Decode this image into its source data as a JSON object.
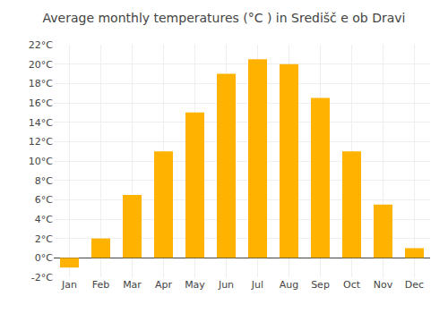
{
  "chart_data": {
    "type": "bar",
    "title": "Average monthly temperatures (°C ) in Središč e ob Dravi",
    "categories": [
      "Jan",
      "Feb",
      "Mar",
      "Apr",
      "May",
      "Jun",
      "Jul",
      "Aug",
      "Sep",
      "Oct",
      "Nov",
      "Dec"
    ],
    "values": [
      -1.0,
      2.0,
      6.5,
      11.0,
      15.0,
      19.0,
      20.5,
      20.0,
      16.5,
      11.0,
      5.5,
      1.0
    ],
    "color": "#FFB300",
    "ylim": [
      -2,
      22
    ],
    "yticks": [
      {
        "value": -2,
        "label": "-2°C"
      },
      {
        "value": 0,
        "label": "0°C"
      },
      {
        "value": 2,
        "label": "2°C"
      },
      {
        "value": 4,
        "label": "4°C"
      },
      {
        "value": 6,
        "label": "6°C"
      },
      {
        "value": 8,
        "label": "8°C"
      },
      {
        "value": 10,
        "label": "10°C"
      },
      {
        "value": 12,
        "label": "12°C"
      },
      {
        "value": 14,
        "label": "14°C"
      },
      {
        "value": 16,
        "label": "16°C"
      },
      {
        "value": 18,
        "label": "18°C"
      },
      {
        "value": 20,
        "label": "20°C"
      },
      {
        "value": 22,
        "label": "22°C"
      }
    ],
    "grid": true
  }
}
